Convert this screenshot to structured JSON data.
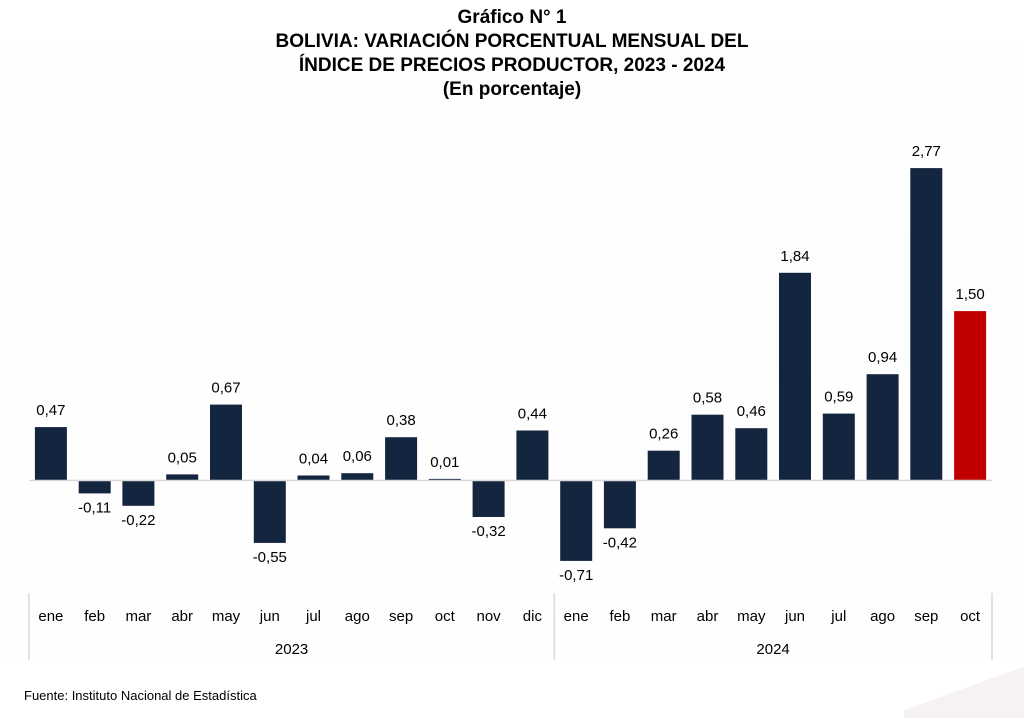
{
  "header": {
    "title_line1": "Gráfico N° 1",
    "title_line2": "BOLIVIA: VARIACIÓN PORCENTUAL MENSUAL DEL",
    "title_line3": "ÍNDICE DE PRECIOS PRODUCTOR, 2023 - 2024",
    "title_line4": "(En porcentaje)"
  },
  "footer": {
    "source": "Fuente: Instituto Nacional de Estadística"
  },
  "colors": {
    "bar": "#14253f",
    "highlight": "#c00000",
    "baseline": "#d9d9d9",
    "axis_box": "#d9d9d9"
  },
  "chart_data": {
    "type": "bar",
    "title": "BOLIVIA: VARIACIÓN PORCENTUAL MENSUAL DEL ÍNDICE DE PRECIOS PRODUCTOR, 2023 - 2024",
    "subtitle": "(En porcentaje)",
    "xlabel": "",
    "ylabel": "",
    "ylim": [
      -0.8,
      2.9
    ],
    "grid": false,
    "legend": "none",
    "categories": [
      "ene",
      "feb",
      "mar",
      "abr",
      "may",
      "jun",
      "jul",
      "ago",
      "sep",
      "oct",
      "nov",
      "dic",
      "ene",
      "feb",
      "mar",
      "abr",
      "may",
      "jun",
      "jul",
      "ago",
      "sep",
      "oct"
    ],
    "groups": [
      {
        "label": "2023",
        "count": 12
      },
      {
        "label": "2024",
        "count": 10
      }
    ],
    "values": [
      0.47,
      -0.11,
      -0.22,
      0.05,
      0.67,
      -0.55,
      0.04,
      0.06,
      0.38,
      0.01,
      -0.32,
      0.44,
      -0.71,
      -0.42,
      0.26,
      0.58,
      0.46,
      1.84,
      0.59,
      0.94,
      2.77,
      1.5
    ],
    "labels": [
      "0,47",
      "-0,11",
      "-0,22",
      "0,05",
      "0,67",
      "-0,55",
      "0,04",
      "0,06",
      "0,38",
      "0,01",
      "-0,32",
      "0,44",
      "-0,71",
      "-0,42",
      "0,26",
      "0,58",
      "0,46",
      "1,84",
      "0,59",
      "0,94",
      "2,77",
      "1,50"
    ],
    "highlight_index": 21
  }
}
